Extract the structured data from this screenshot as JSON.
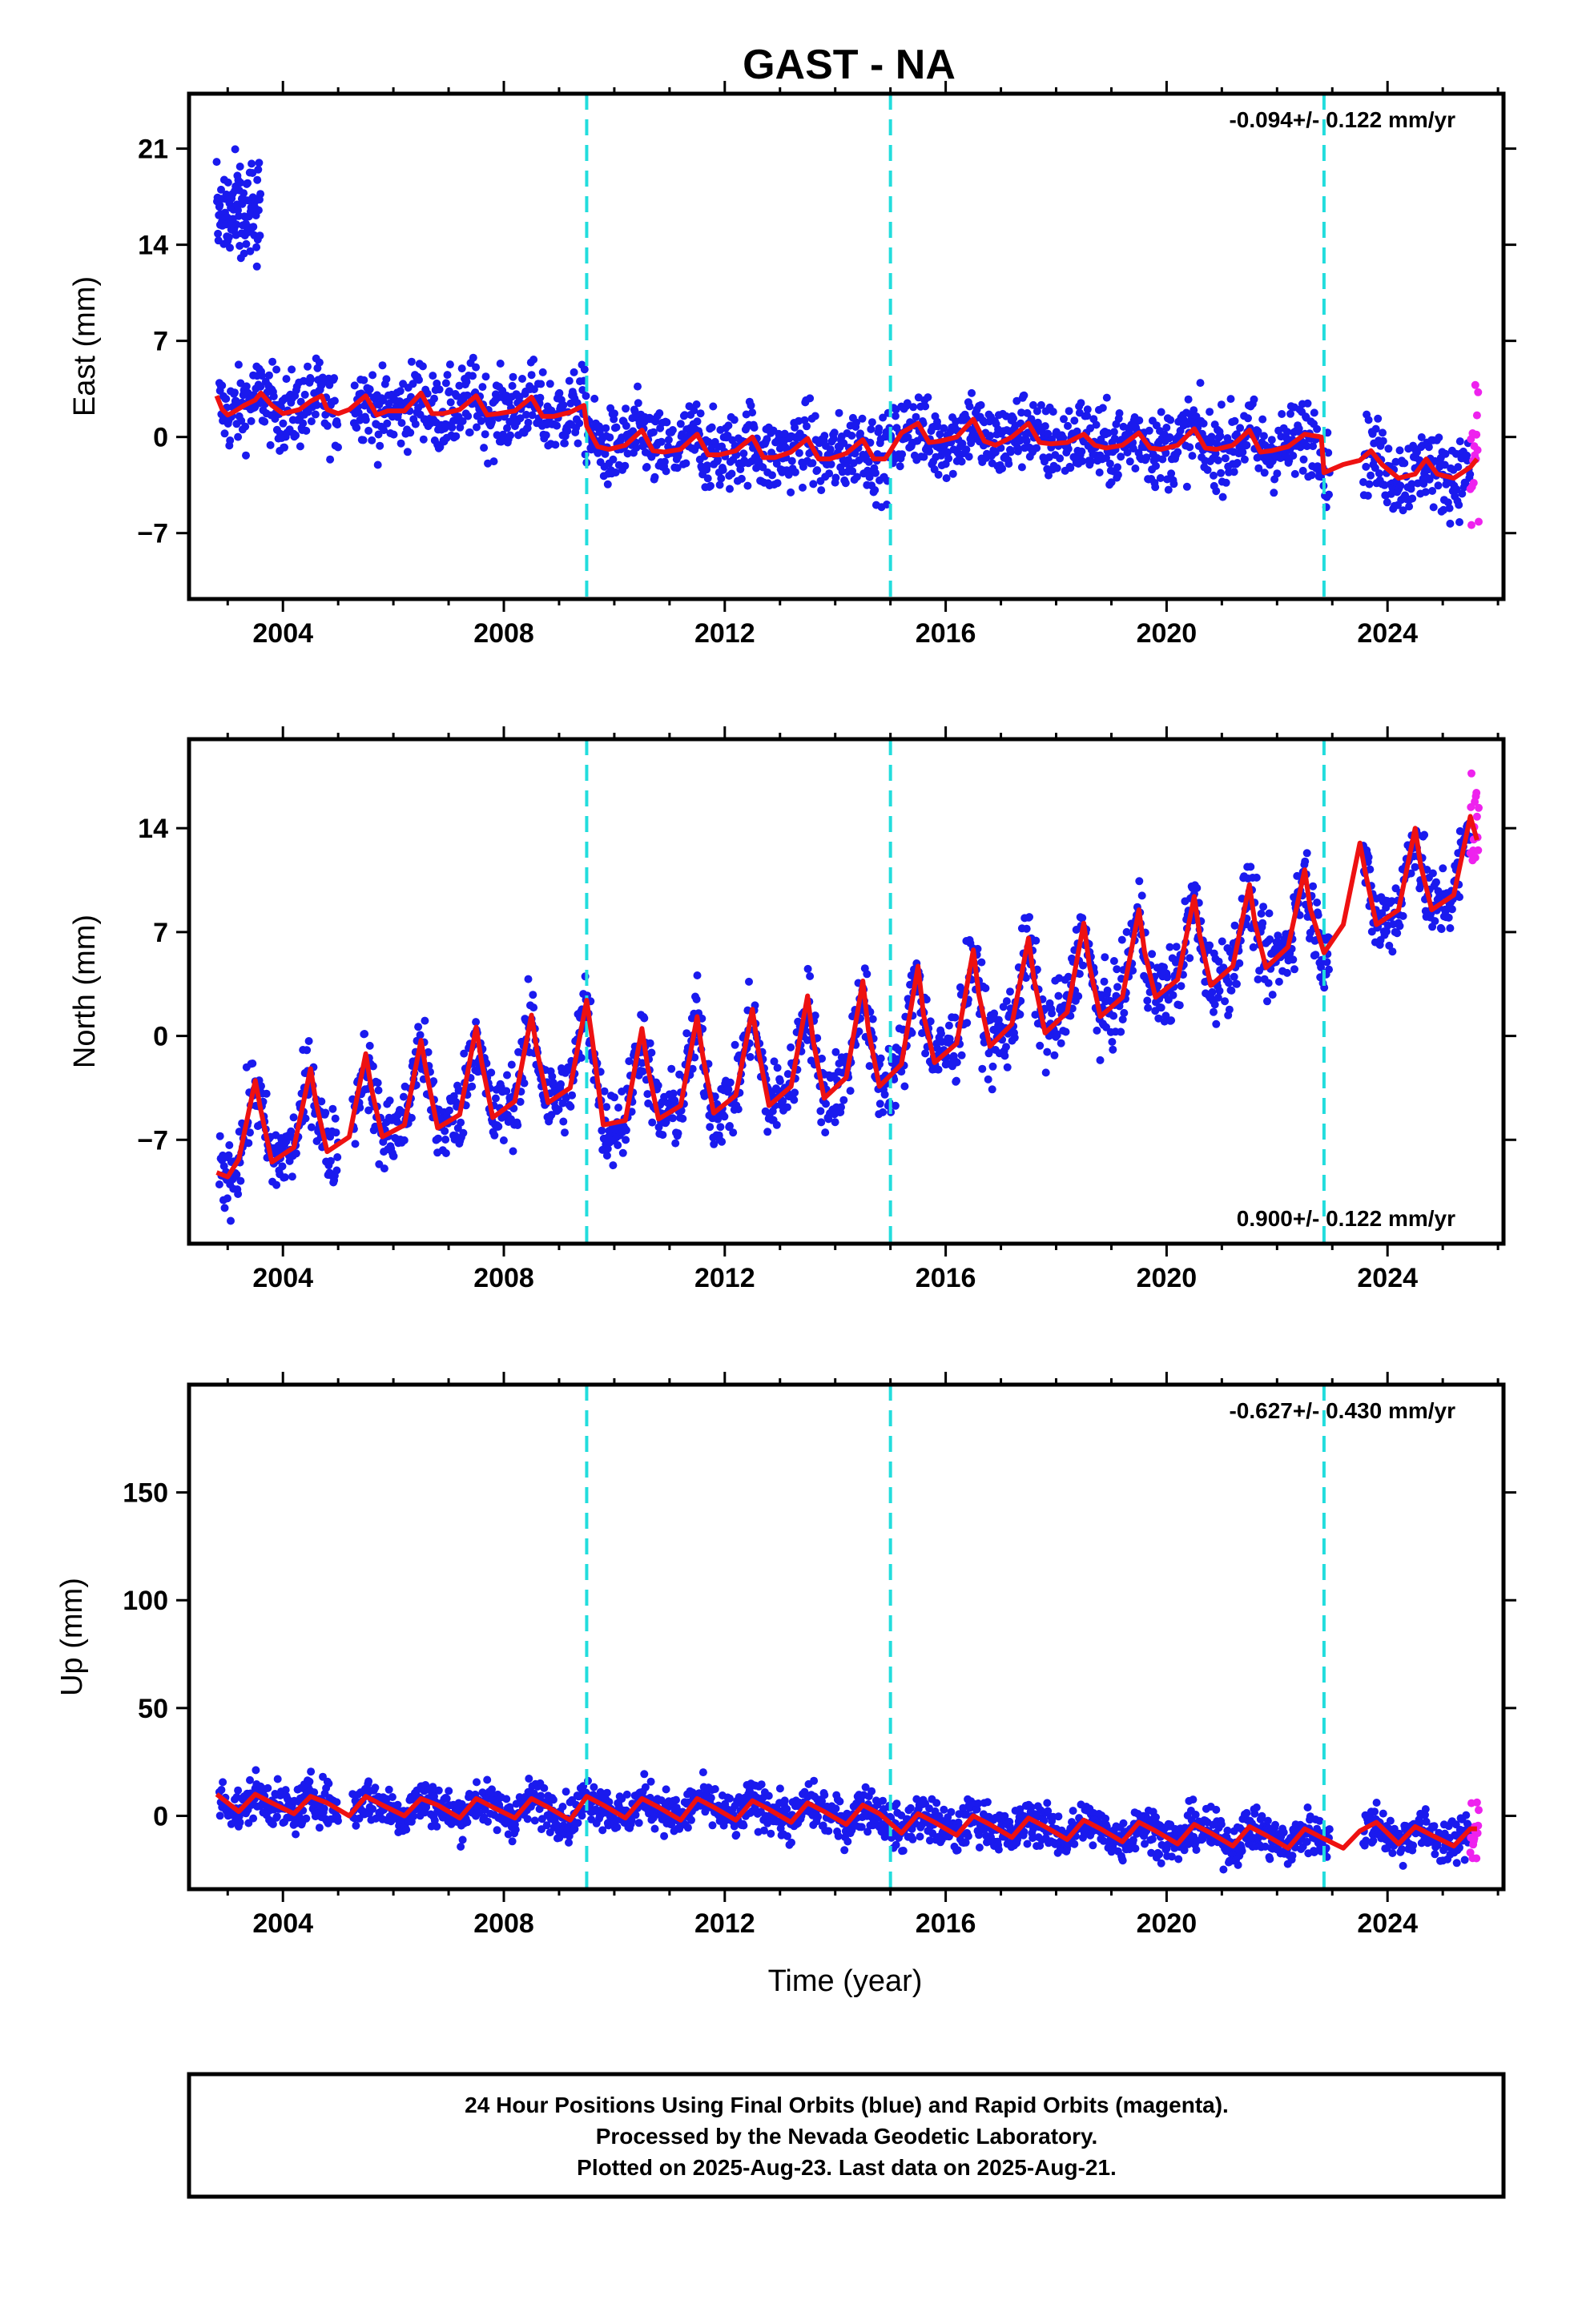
{
  "title": "GAST - NA",
  "xlabel": "Time (year)",
  "caption": [
    "24 Hour Positions Using Final Orbits (blue) and Rapid Orbits (magenta).",
    "Processed by the Nevada Geodetic Laboratory.",
    "Plotted on 2025-Aug-23. Last data on 2025-Aug-21."
  ],
  "colors": {
    "final": "#1a1aee",
    "rapid": "#ee22ee",
    "model": "#ee1111",
    "event": "#22dddd",
    "frame": "#000000"
  },
  "chart_data": [
    {
      "type": "scatter",
      "panel": "east",
      "ylabel": "East (mm)",
      "rate_text": "-0.094+/- 0.122 mm/yr",
      "rate_position": "top-right",
      "xlim": [
        2002.3,
        2026.1
      ],
      "ylim": [
        -11.8,
        25
      ],
      "xticks": [
        2004,
        2008,
        2012,
        2016,
        2020,
        2024
      ],
      "yticks": [
        -7,
        0,
        7,
        14,
        21
      ],
      "event_lines": [
        2009.5,
        2015.0,
        2022.85
      ],
      "grid": false,
      "model": {
        "x": [
          2002.8,
          2002.9,
          2003.0,
          2003.1,
          2003.3,
          2003.5,
          2003.6,
          2003.8,
          2004.0,
          2004.3,
          2004.5,
          2004.7,
          2004.8,
          2005.0,
          2005.2,
          2005.5,
          2005.7,
          2005.9,
          2006.2,
          2006.5,
          2006.7,
          2006.9,
          2007.2,
          2007.5,
          2007.7,
          2007.9,
          2008.2,
          2008.5,
          2008.7,
          2008.9,
          2009.2,
          2009.45,
          2009.5,
          2009.7,
          2009.9,
          2010.2,
          2010.5,
          2010.7,
          2010.9,
          2011.2,
          2011.5,
          2011.7,
          2011.9,
          2012.2,
          2012.5,
          2012.7,
          2012.9,
          2013.2,
          2013.5,
          2013.7,
          2013.9,
          2014.2,
          2014.5,
          2014.7,
          2014.9,
          2015.0,
          2015.2,
          2015.5,
          2015.7,
          2015.9,
          2016.2,
          2016.5,
          2016.7,
          2016.9,
          2017.2,
          2017.5,
          2017.7,
          2017.9,
          2018.2,
          2018.5,
          2018.7,
          2018.9,
          2019.2,
          2019.5,
          2019.7,
          2019.9,
          2020.2,
          2020.5,
          2020.7,
          2020.9,
          2021.2,
          2021.5,
          2021.7,
          2021.9,
          2022.2,
          2022.5,
          2022.8,
          2022.85,
          2023.2,
          2023.5,
          2023.7,
          2023.9,
          2024.2,
          2024.5,
          2024.7,
          2024.9,
          2025.2,
          2025.5,
          2025.62
        ],
        "y": [
          3.0,
          2.0,
          1.6,
          1.8,
          2.3,
          2.7,
          3.2,
          2.3,
          1.7,
          2.0,
          2.6,
          3.0,
          2.0,
          1.7,
          2.0,
          3.0,
          1.6,
          1.9,
          1.9,
          3.2,
          1.7,
          1.7,
          2.0,
          3.0,
          1.6,
          1.7,
          1.9,
          2.9,
          1.5,
          1.5,
          1.8,
          2.3,
          0.8,
          -0.7,
          -0.9,
          -0.6,
          0.5,
          -1.0,
          -1.1,
          -0.9,
          0.2,
          -1.3,
          -1.3,
          -1.0,
          0.0,
          -1.5,
          -1.5,
          -1.1,
          -0.1,
          -1.6,
          -1.6,
          -1.2,
          -0.2,
          -1.6,
          -1.6,
          -1.0,
          0.3,
          1.0,
          -0.4,
          -0.3,
          0.0,
          1.3,
          -0.3,
          -0.6,
          0.0,
          1.0,
          -0.4,
          -0.5,
          -0.4,
          0.2,
          -0.6,
          -0.8,
          -0.6,
          0.3,
          -0.8,
          -0.9,
          -0.6,
          0.6,
          -0.8,
          -0.9,
          -0.6,
          0.5,
          -1.1,
          -1.0,
          -0.7,
          0.2,
          0.0,
          -2.6,
          -2.0,
          -1.7,
          -1.0,
          -2.0,
          -3.0,
          -2.7,
          -1.6,
          -2.7,
          -3.0,
          -2.2,
          -1.6
        ]
      }
    },
    {
      "type": "scatter",
      "panel": "north",
      "ylabel": "North (mm)",
      "rate_text": "0.900+/- 0.122 mm/yr",
      "rate_position": "bottom-right",
      "xlim": [
        2002.3,
        2026.1
      ],
      "ylim": [
        -14,
        20
      ],
      "xticks": [
        2004,
        2008,
        2012,
        2016,
        2020,
        2024
      ],
      "yticks": [
        -7,
        0,
        7,
        14
      ],
      "event_lines": [
        2009.5,
        2015.0,
        2022.85
      ],
      "grid": false,
      "model": {
        "x": [
          2002.8,
          2003.0,
          2003.2,
          2003.5,
          2003.6,
          2003.8,
          2004.2,
          2004.5,
          2004.6,
          2004.8,
          2005.2,
          2005.5,
          2005.6,
          2005.8,
          2006.2,
          2006.5,
          2006.6,
          2006.8,
          2007.2,
          2007.5,
          2007.6,
          2007.8,
          2008.2,
          2008.5,
          2008.6,
          2008.8,
          2009.2,
          2009.5,
          2009.6,
          2009.8,
          2010.2,
          2010.5,
          2010.6,
          2010.8,
          2011.2,
          2011.5,
          2011.6,
          2011.8,
          2012.2,
          2012.5,
          2012.6,
          2012.8,
          2013.2,
          2013.5,
          2013.6,
          2013.8,
          2014.2,
          2014.5,
          2014.6,
          2014.8,
          2015.2,
          2015.5,
          2015.6,
          2015.8,
          2016.2,
          2016.5,
          2016.6,
          2016.8,
          2017.2,
          2017.5,
          2017.6,
          2017.8,
          2018.2,
          2018.5,
          2018.6,
          2018.8,
          2019.2,
          2019.5,
          2019.6,
          2019.8,
          2020.2,
          2020.5,
          2020.6,
          2020.8,
          2021.2,
          2021.5,
          2021.6,
          2021.8,
          2022.2,
          2022.5,
          2022.6,
          2022.85,
          2023.2,
          2023.5,
          2023.6,
          2023.8,
          2024.2,
          2024.5,
          2024.6,
          2024.8,
          2025.2,
          2025.5,
          2025.62
        ],
        "y": [
          -9.2,
          -9.5,
          -8.3,
          -3.0,
          -5.0,
          -8.5,
          -7.5,
          -2.2,
          -4.5,
          -7.8,
          -6.8,
          -1.2,
          -3.5,
          -6.8,
          -6.0,
          -0.3,
          -2.5,
          -6.2,
          -5.3,
          0.6,
          -1.8,
          -5.5,
          -4.4,
          1.4,
          -1.0,
          -4.5,
          -3.5,
          2.4,
          -0.2,
          -6.0,
          -5.7,
          0.5,
          -2.0,
          -5.6,
          -4.7,
          1.3,
          -1.3,
          -5.2,
          -4.0,
          1.8,
          -0.8,
          -4.7,
          -3.4,
          2.7,
          -0.3,
          -4.2,
          -2.8,
          3.7,
          0.4,
          -3.4,
          -1.9,
          4.7,
          1.4,
          -1.8,
          -0.5,
          5.8,
          2.8,
          -0.7,
          0.8,
          6.6,
          3.8,
          0.2,
          1.6,
          7.6,
          4.8,
          1.3,
          2.6,
          8.5,
          5.7,
          2.6,
          3.8,
          9.4,
          6.8,
          3.4,
          4.7,
          10.2,
          7.6,
          4.6,
          6.0,
          11.2,
          8.6,
          5.6,
          7.5,
          13.0,
          11.0,
          7.5,
          8.5,
          14.0,
          11.5,
          8.5,
          9.5,
          14.8,
          13.2
        ]
      }
    },
    {
      "type": "scatter",
      "panel": "up",
      "ylabel": "Up (mm)",
      "rate_text": "-0.627+/- 0.430 mm/yr",
      "rate_position": "top-right",
      "xlim": [
        2002.3,
        2026.1
      ],
      "ylim": [
        -34,
        200
      ],
      "xticks": [
        2004,
        2008,
        2012,
        2016,
        2020,
        2024
      ],
      "yticks": [
        0,
        50,
        100,
        150
      ],
      "event_lines": [
        2009.5,
        2015.0,
        2022.85
      ],
      "grid": false,
      "model": {
        "x": [
          2002.8,
          2003.2,
          2003.5,
          2003.8,
          2004.2,
          2004.5,
          2004.8,
          2005.2,
          2005.5,
          2005.8,
          2006.2,
          2006.5,
          2006.8,
          2007.2,
          2007.5,
          2007.8,
          2008.2,
          2008.5,
          2008.8,
          2009.2,
          2009.5,
          2009.8,
          2010.2,
          2010.5,
          2010.8,
          2011.2,
          2011.5,
          2011.8,
          2012.2,
          2012.5,
          2012.8,
          2013.2,
          2013.5,
          2013.8,
          2014.2,
          2014.5,
          2014.8,
          2015.2,
          2015.5,
          2015.8,
          2016.2,
          2016.5,
          2016.8,
          2017.2,
          2017.5,
          2017.8,
          2018.2,
          2018.5,
          2018.8,
          2019.2,
          2019.5,
          2019.8,
          2020.2,
          2020.5,
          2020.8,
          2021.2,
          2021.5,
          2021.8,
          2022.2,
          2022.5,
          2022.8,
          2023.2,
          2023.5,
          2023.8,
          2024.2,
          2024.5,
          2024.8,
          2025.2,
          2025.5,
          2025.62
        ],
        "y": [
          10,
          2,
          10,
          6,
          1,
          9,
          6,
          0,
          9,
          5,
          0,
          8,
          5,
          -1,
          8,
          4,
          -1,
          8,
          4,
          -2,
          9,
          5,
          -1,
          8,
          4,
          -2,
          8,
          4,
          -2,
          7,
          3,
          -3,
          6,
          2,
          -4,
          5,
          1,
          -8,
          1,
          -3,
          -9,
          0,
          -4,
          -10,
          -1,
          -5,
          -11,
          -2,
          -6,
          -12,
          -3,
          -7,
          -13,
          -4,
          -8,
          -14,
          -5,
          -9,
          -15,
          -6,
          -10,
          -15,
          -7,
          -3,
          -13,
          -5,
          -9,
          -14,
          -6,
          -6
        ]
      }
    }
  ]
}
